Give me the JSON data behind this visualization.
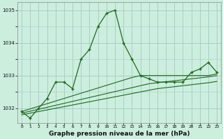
{
  "title": "Graphe pression niveau de la mer (hPa)",
  "background_color": "#cceedd",
  "grid_color": "#aacccc",
  "line_color": "#1a6b1a",
  "hours": [
    0,
    1,
    2,
    3,
    4,
    5,
    6,
    7,
    8,
    9,
    10,
    11,
    12,
    13,
    14,
    15,
    16,
    17,
    18,
    19,
    20,
    21,
    22,
    23
  ],
  "pressure": [
    1031.9,
    1031.7,
    1032.0,
    1032.3,
    1032.8,
    1032.8,
    1032.6,
    1033.5,
    1033.8,
    1034.5,
    1034.9,
    1035.0,
    1034.0,
    1033.5,
    1033.0,
    1032.9,
    1032.8,
    1032.8,
    1032.8,
    1032.8,
    1033.1,
    1033.2,
    1033.4,
    1033.1
  ],
  "stat_line1": [
    1031.9,
    1031.98,
    1032.06,
    1032.14,
    1032.22,
    1032.3,
    1032.38,
    1032.46,
    1032.54,
    1032.62,
    1032.7,
    1032.78,
    1032.86,
    1032.94,
    1033.0,
    1033.0,
    1033.0,
    1033.0,
    1033.0,
    1033.0,
    1033.0,
    1033.0,
    1033.0,
    1033.05
  ],
  "stat_line2": [
    1031.85,
    1031.91,
    1031.97,
    1032.03,
    1032.09,
    1032.15,
    1032.21,
    1032.27,
    1032.33,
    1032.39,
    1032.45,
    1032.51,
    1032.57,
    1032.63,
    1032.69,
    1032.75,
    1032.78,
    1032.81,
    1032.84,
    1032.87,
    1032.9,
    1032.93,
    1032.96,
    1033.0
  ],
  "stat_line3": [
    1031.8,
    1031.85,
    1031.9,
    1031.95,
    1032.0,
    1032.05,
    1032.1,
    1032.15,
    1032.2,
    1032.25,
    1032.3,
    1032.35,
    1032.4,
    1032.45,
    1032.5,
    1032.55,
    1032.6,
    1032.63,
    1032.66,
    1032.69,
    1032.72,
    1032.75,
    1032.78,
    1032.82
  ],
  "ylim": [
    1031.55,
    1035.25
  ],
  "yticks": [
    1032,
    1033,
    1034,
    1035
  ],
  "xticks": [
    0,
    1,
    2,
    3,
    4,
    5,
    6,
    7,
    8,
    9,
    10,
    11,
    12,
    13,
    14,
    15,
    16,
    17,
    18,
    19,
    20,
    21,
    22,
    23
  ],
  "tick_fontsize": 4.5,
  "title_fontsize": 6.5
}
